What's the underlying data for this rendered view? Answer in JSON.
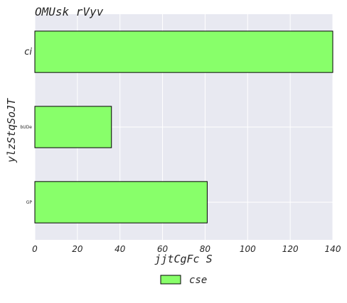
{
  "chart_data": {
    "type": "bar",
    "orientation": "horizontal",
    "title": "OMUsk rVyv",
    "xlabel": "jjtCgFc S",
    "ylabel": "ylzStqSoJT",
    "categories": [
      "ci",
      "bUDe",
      "GP"
    ],
    "category_font_sizes": [
      "large",
      "tiny",
      "tiny"
    ],
    "xlim": [
      0,
      140
    ],
    "xticks": [
      0,
      20,
      40,
      60,
      80,
      100,
      120,
      140
    ],
    "series": [
      {
        "name": "cse",
        "values": [
          140,
          36,
          81
        ],
        "color": "#88ff6a"
      }
    ],
    "grid": true,
    "legend_position": "bottom-center",
    "background_color": "#e8e9f1",
    "grid_color": "#ffffff",
    "bar_edge_color": "#000000"
  }
}
